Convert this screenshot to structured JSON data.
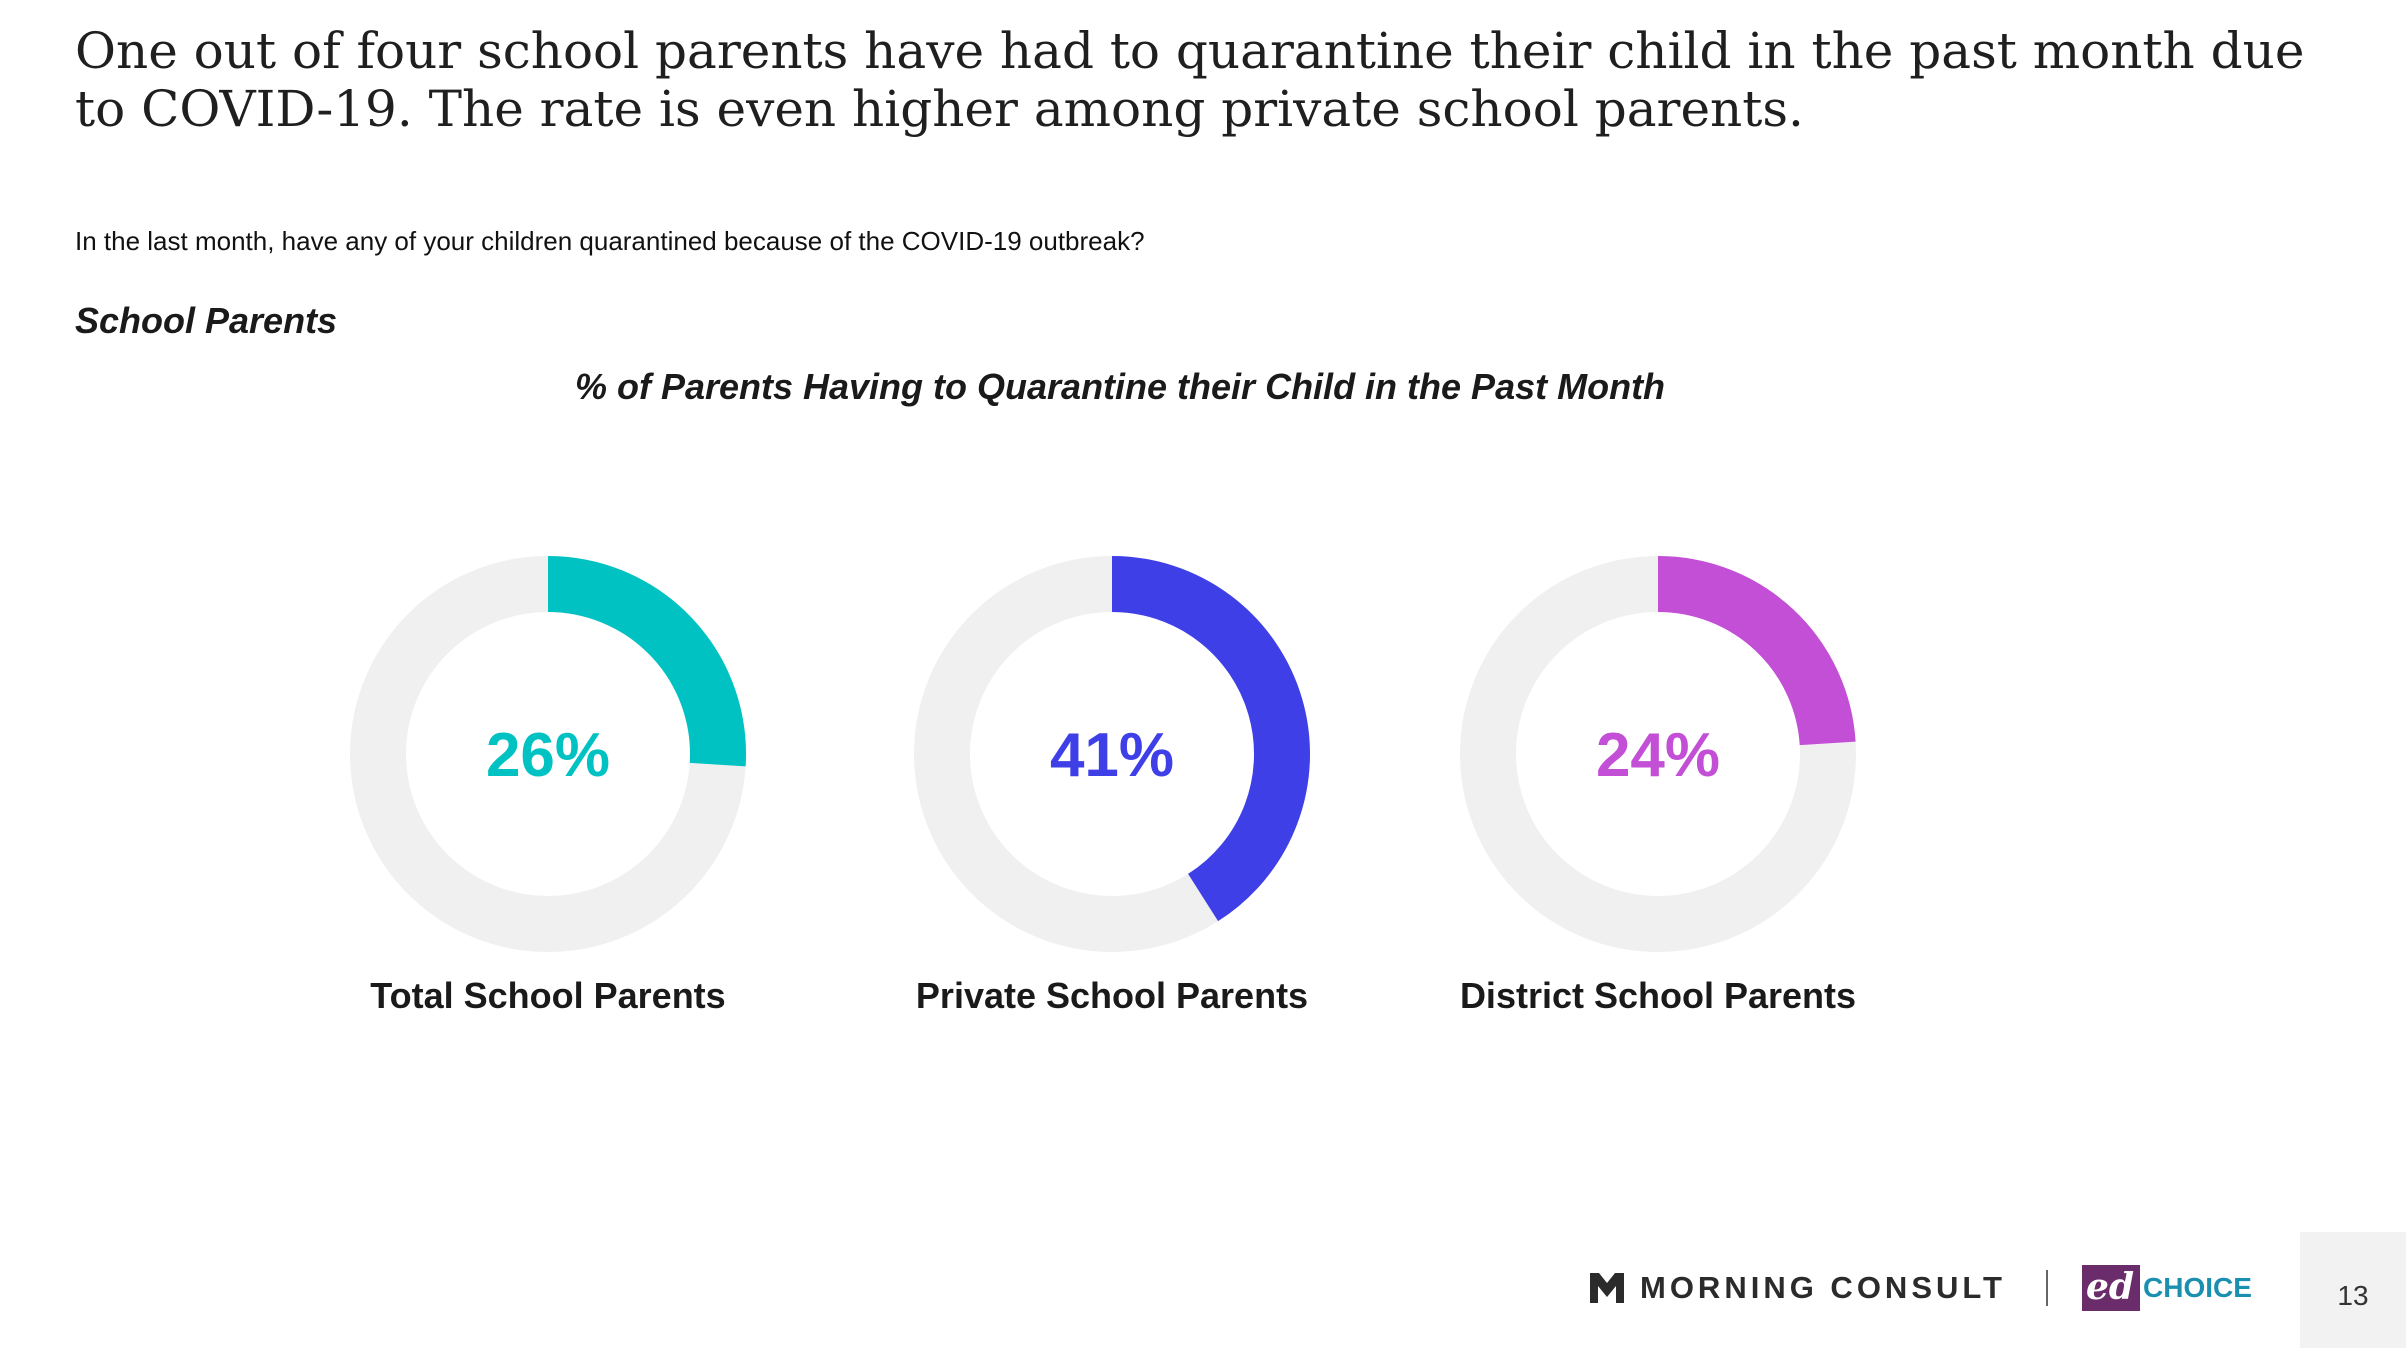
{
  "headline": "One out of four school parents have had to quarantine their child in the past month due to COVID-19. The rate is even higher among private school parents.",
  "question": "In the last month, have any of your children quarantined because of the COVID-19 outbreak?",
  "segment_label": "School Parents",
  "chart_data": {
    "type": "pie",
    "subtype": "donut",
    "title": "% of Parents Having to Quarantine their Child in the Past Month",
    "track_color": "#f0f0f0",
    "items": [
      {
        "label": "Total School Parents",
        "value": 26,
        "display": "26%",
        "color": "#00c2c2"
      },
      {
        "label": "Private School Parents",
        "value": 41,
        "display": "41%",
        "color": "#3f3fe8"
      },
      {
        "label": "District School Parents",
        "value": 24,
        "display": "24%",
        "color": "#c24fd6"
      }
    ]
  },
  "footer": {
    "morning_consult": "MORNING CONSULT",
    "ed_mark": "ed",
    "choice": "CHOICE",
    "page_number": "13"
  }
}
